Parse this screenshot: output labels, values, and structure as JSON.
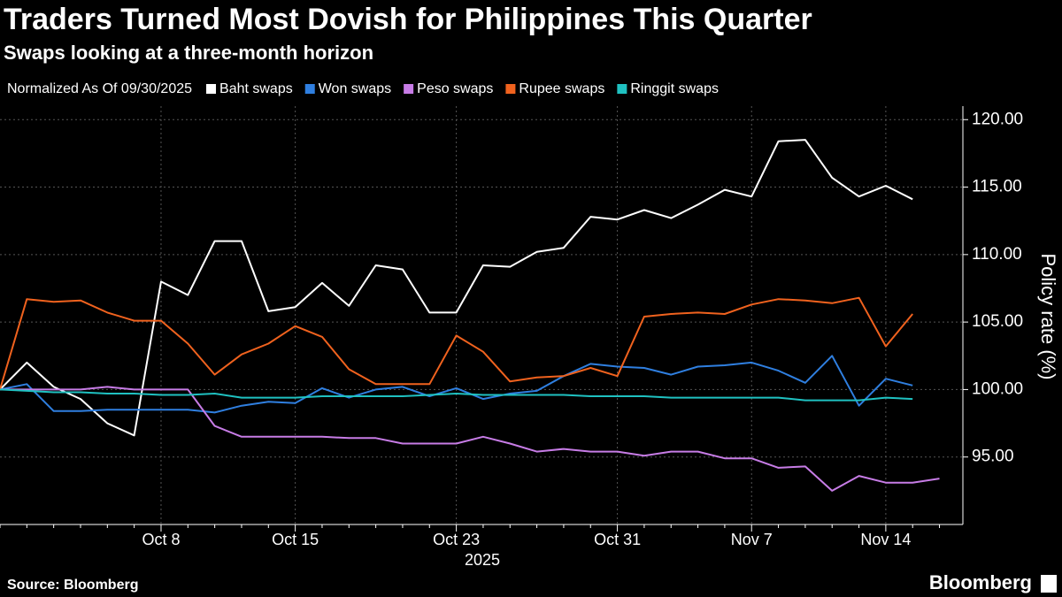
{
  "chart_data": {
    "type": "line",
    "title": "Traders Turned Most Dovish for Philippines This Quarter",
    "subtitle": "Swaps looking at a three-month horizon",
    "legend_note": "Normalized As Of 09/30/2025",
    "x_label": "2025",
    "y_label": "Policy rate (%)",
    "source": "Source: Bloomberg",
    "brand": "Bloomberg",
    "categories": [
      null,
      null,
      null,
      null,
      null,
      null,
      "Oct 8",
      null,
      null,
      null,
      null,
      "Oct 15",
      null,
      null,
      null,
      null,
      null,
      "Oct 23",
      null,
      null,
      null,
      null,
      null,
      "Oct 31",
      null,
      null,
      null,
      null,
      "Nov 7",
      null,
      null,
      null,
      null,
      "Nov 14",
      null,
      null
    ],
    "ylim": [
      90,
      121
    ],
    "yticks": [
      {
        "value": 95,
        "label": "95.00"
      },
      {
        "value": 100,
        "label": "100.00"
      },
      {
        "value": 105,
        "label": "105.00"
      },
      {
        "value": 110,
        "label": "110.00"
      },
      {
        "value": 115,
        "label": "115.00"
      },
      {
        "value": 120,
        "label": "120.00"
      }
    ],
    "grid": true,
    "series": [
      {
        "name": "Baht swaps",
        "color": "#ffffff",
        "values": [
          100,
          102,
          100.2,
          99.3,
          97.5,
          96.6,
          108,
          107,
          111,
          111,
          105.8,
          106.1,
          107.9,
          106.2,
          109.2,
          108.9,
          105.7,
          105.7,
          109.2,
          109.1,
          110.2,
          110.5,
          112.8,
          112.6,
          113.3,
          112.7,
          113.7,
          114.8,
          114.3,
          118.4,
          118.5,
          115.7,
          114.3,
          115.1,
          114.1,
          null
        ]
      },
      {
        "name": "Won swaps",
        "color": "#2f7fe0",
        "values": [
          100,
          100.4,
          98.4,
          98.4,
          98.5,
          98.5,
          98.5,
          98.5,
          98.3,
          98.8,
          99.1,
          99.0,
          100.1,
          99.4,
          100.0,
          100.2,
          99.5,
          100.1,
          99.3,
          99.7,
          99.9,
          101.0,
          101.9,
          101.7,
          101.6,
          101.1,
          101.7,
          101.8,
          102.0,
          101.4,
          100.5,
          102.5,
          98.8,
          100.8,
          100.3,
          null
        ]
      },
      {
        "name": "Peso swaps",
        "color": "#c77ce6",
        "values": [
          100,
          100,
          100,
          100,
          100.2,
          100,
          100,
          100,
          97.3,
          96.5,
          96.5,
          96.5,
          96.5,
          96.4,
          96.4,
          96.0,
          96.0,
          96.0,
          96.5,
          96.0,
          95.4,
          95.6,
          95.4,
          95.4,
          95.1,
          95.4,
          95.4,
          94.9,
          94.9,
          94.2,
          94.3,
          92.5,
          93.6,
          93.1,
          93.1,
          93.4
        ]
      },
      {
        "name": "Rupee swaps",
        "color": "#f0621e",
        "values": [
          100,
          106.7,
          106.5,
          106.6,
          105.7,
          105.1,
          105.1,
          103.4,
          101.1,
          102.6,
          103.4,
          104.7,
          103.9,
          101.5,
          100.4,
          100.4,
          100.4,
          104.0,
          102.8,
          100.6,
          100.9,
          101.0,
          101.6,
          101.0,
          105.4,
          105.6,
          105.7,
          105.6,
          106.3,
          106.7,
          106.6,
          106.4,
          106.8,
          103.2,
          105.6,
          null
        ]
      },
      {
        "name": "Ringgit swaps",
        "color": "#1fc1c1",
        "values": [
          100,
          99.9,
          99.8,
          99.8,
          99.7,
          99.7,
          99.6,
          99.6,
          99.7,
          99.4,
          99.4,
          99.4,
          99.5,
          99.5,
          99.5,
          99.5,
          99.6,
          99.7,
          99.6,
          99.6,
          99.6,
          99.6,
          99.5,
          99.5,
          99.5,
          99.4,
          99.4,
          99.4,
          99.4,
          99.4,
          99.2,
          99.2,
          99.2,
          99.4,
          99.3,
          null
        ]
      }
    ]
  }
}
